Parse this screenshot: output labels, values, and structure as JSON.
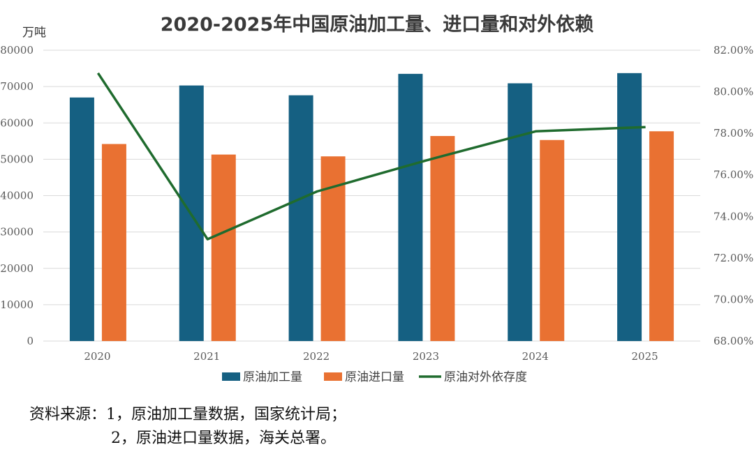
{
  "chart_data": {
    "type": "bar",
    "title": "2020-2025年中国原油加工量、进口量和对外依赖",
    "ylabel": "万吨",
    "categories": [
      "2020",
      "2021",
      "2022",
      "2023",
      "2024",
      "2025"
    ],
    "ylim": [
      0,
      80000
    ],
    "yticks": [
      "0",
      "10000",
      "20000",
      "30000",
      "40000",
      "50000",
      "60000",
      "70000",
      "80000"
    ],
    "y2lim": [
      68,
      82
    ],
    "y2ticks": [
      "68.00%",
      "70.00%",
      "72.00%",
      "74.00%",
      "76.00%",
      "78.00%",
      "80.00%",
      "82.00%"
    ],
    "series": [
      {
        "name": "原油加工量",
        "type": "bar",
        "color": "#156082",
        "values": [
          67000,
          70300,
          67600,
          73500,
          70900,
          73700
        ]
      },
      {
        "name": "原油进口量",
        "type": "bar",
        "color": "#e97132",
        "values": [
          54200,
          51300,
          50800,
          56400,
          55300,
          57700
        ]
      },
      {
        "name": "原油对外依存度",
        "type": "line",
        "axis": "right",
        "color": "#1f6b2e",
        "values": [
          80.9,
          72.9,
          75.2,
          76.7,
          78.1,
          78.3
        ]
      }
    ],
    "grid": true,
    "legend": "bottom"
  },
  "source": {
    "line1": "资料来源：1，原油加工量数据，国家统计局；",
    "line2": "2，原油进口量数据，海关总署。"
  }
}
